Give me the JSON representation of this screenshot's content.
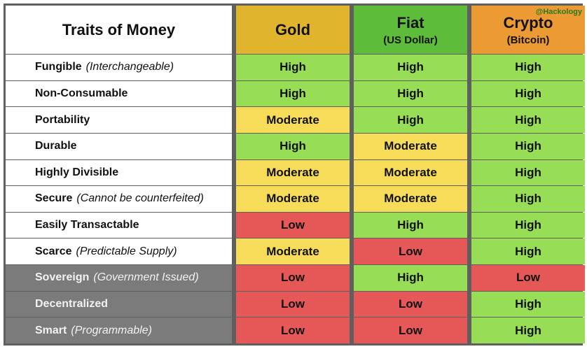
{
  "title": "Traits of Money",
  "watermark": "@Hackology",
  "columns": [
    {
      "name": "Gold",
      "sub": ""
    },
    {
      "name": "Fiat",
      "sub": "(US Dollar)"
    },
    {
      "name": "Crypto",
      "sub": "(Bitcoin)"
    }
  ],
  "colors": {
    "gold_header": "#e0b42c",
    "fiat_header": "#5dbc3a",
    "crypto_header": "#ec9a33",
    "high": "#97dd55",
    "moderate": "#f7dc5a",
    "low": "#e65858",
    "gray_trait": "#7b7b7b"
  },
  "rows": [
    {
      "trait": "Fungible",
      "desc": "(Interchangeable)",
      "gray": false,
      "values": [
        "High",
        "High",
        "High"
      ]
    },
    {
      "trait": "Non-Consumable",
      "desc": "",
      "gray": false,
      "values": [
        "High",
        "High",
        "High"
      ]
    },
    {
      "trait": "Portability",
      "desc": "",
      "gray": false,
      "values": [
        "Moderate",
        "High",
        "High"
      ]
    },
    {
      "trait": "Durable",
      "desc": "",
      "gray": false,
      "values": [
        "High",
        "Moderate",
        "High"
      ]
    },
    {
      "trait": "Highly Divisible",
      "desc": "",
      "gray": false,
      "values": [
        "Moderate",
        "Moderate",
        "High"
      ]
    },
    {
      "trait": "Secure",
      "desc": "(Cannot be counterfeited)",
      "gray": false,
      "values": [
        "Moderate",
        "Moderate",
        "High"
      ]
    },
    {
      "trait": "Easily Transactable",
      "desc": "",
      "gray": false,
      "values": [
        "Low",
        "High",
        "High"
      ]
    },
    {
      "trait": "Scarce",
      "desc": "(Predictable Supply)",
      "gray": false,
      "values": [
        "Moderate",
        "Low",
        "High"
      ]
    },
    {
      "trait": "Sovereign",
      "desc": "(Government Issued)",
      "gray": true,
      "values": [
        "Low",
        "High",
        "Low"
      ]
    },
    {
      "trait": "Decentralized",
      "desc": "",
      "gray": true,
      "values": [
        "Low",
        "Low",
        "High"
      ]
    },
    {
      "trait": "Smart",
      "desc": "(Programmable)",
      "gray": true,
      "values": [
        "Low",
        "Low",
        "High"
      ]
    }
  ]
}
